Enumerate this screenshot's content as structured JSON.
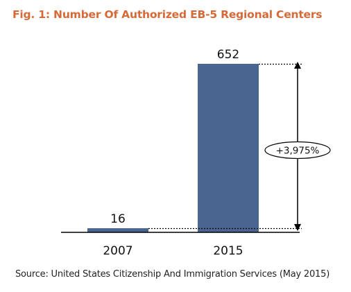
{
  "title": "Fig. 1: Number Of Authorized EB-5 Regional Centers",
  "source": "Source: United States Citizenship And Immigration Services (May 2015)",
  "chart_data": {
    "type": "bar",
    "categories": [
      "2007",
      "2015"
    ],
    "values": [
      16,
      652
    ],
    "ylim": [
      0,
      652
    ],
    "xlabel": "",
    "ylabel": "",
    "grid": false,
    "annotations": [
      {
        "text": "+3,975%",
        "from": "2007",
        "to": "2015"
      }
    ],
    "colors": {
      "bar": "#4a6690",
      "title": "#d56a38"
    }
  }
}
